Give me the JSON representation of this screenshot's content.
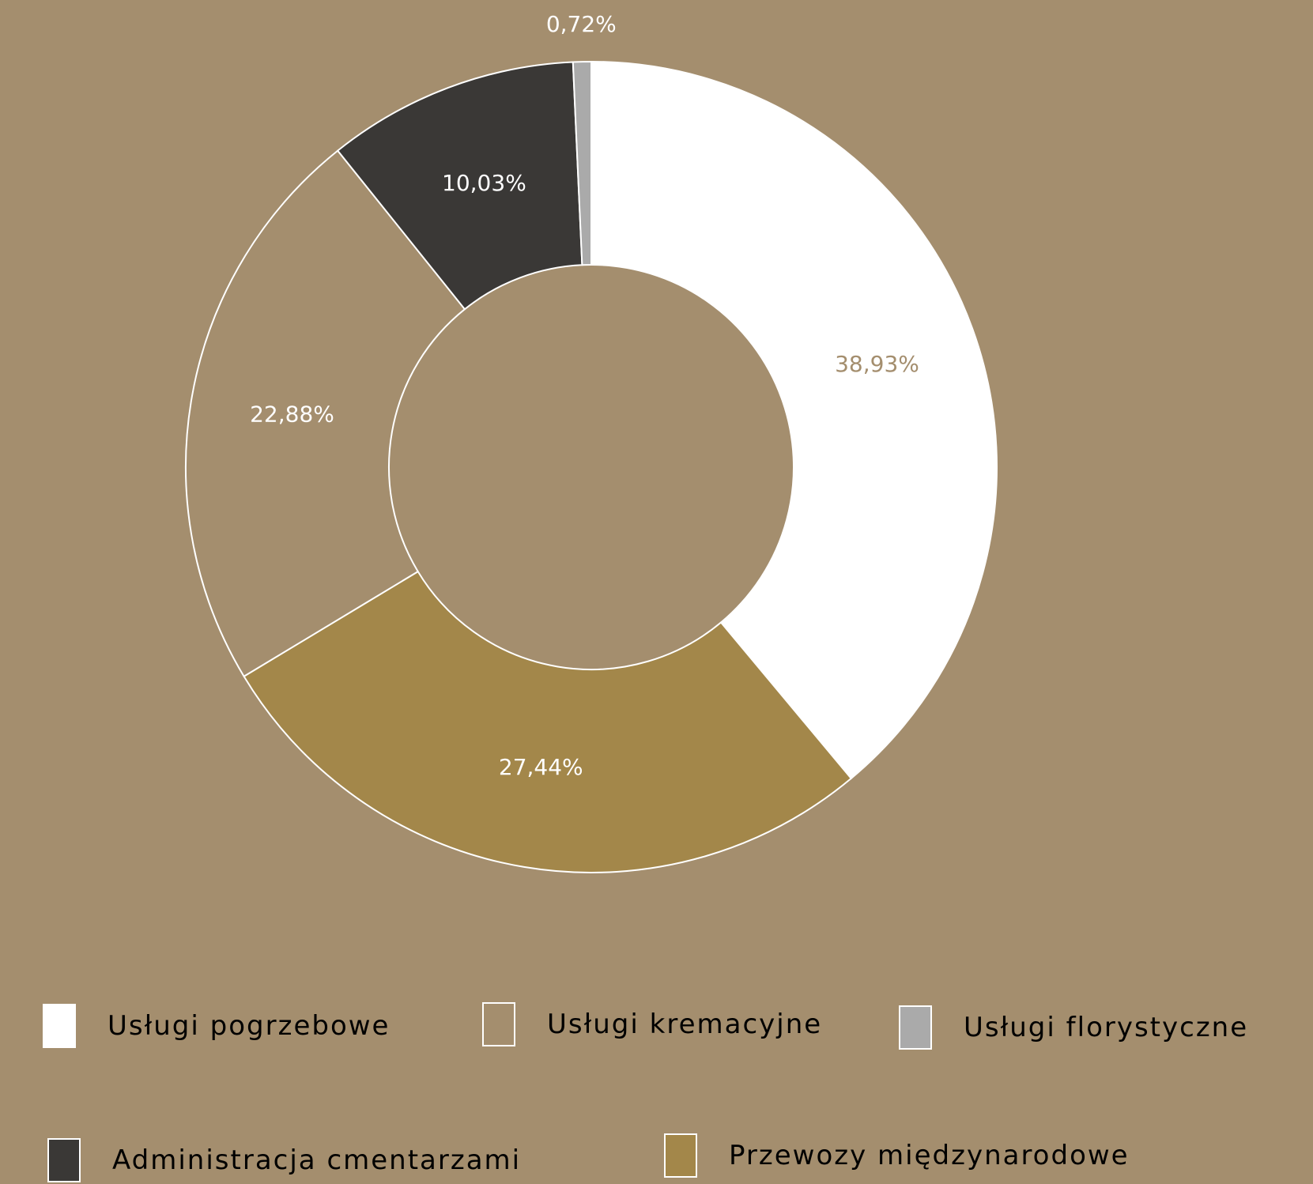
{
  "chart_data": {
    "type": "pie",
    "donut": true,
    "categories": [
      "Usługi pogrzebowe",
      "Przewozy międzynarodowe",
      "Usługi kremacyjne",
      "Administracja cmentarzami",
      "Usługi florystyczne"
    ],
    "values": [
      38.93,
      27.44,
      22.88,
      10.03,
      0.72
    ],
    "data_labels": [
      "38,93%",
      "27,44%",
      "22,88%",
      "10,03%",
      "0,72%"
    ],
    "colors": [
      "#ffffff",
      "#a3874a",
      "#a48e6e",
      "#3a3836",
      "#aaaaaa"
    ],
    "label_colors": [
      "#a48e6e",
      "#ffffff",
      "#ffffff",
      "#ffffff",
      "#ffffff"
    ],
    "background": "#a48e6e",
    "slice_border_color": "#ffffff",
    "legend": {
      "placement": "bottom",
      "items": [
        {
          "label": "Usługi pogrzebowe",
          "color": "#ffffff"
        },
        {
          "label": "Usługi kremacyjne",
          "color": "#a48e6e"
        },
        {
          "label": "Usługi florystyczne",
          "color": "#aaaaaa"
        },
        {
          "label": "Administracja cmentarzami",
          "color": "#3a3836"
        },
        {
          "label": "Przewozy międzynarodowe",
          "color": "#a3874a"
        }
      ]
    }
  }
}
